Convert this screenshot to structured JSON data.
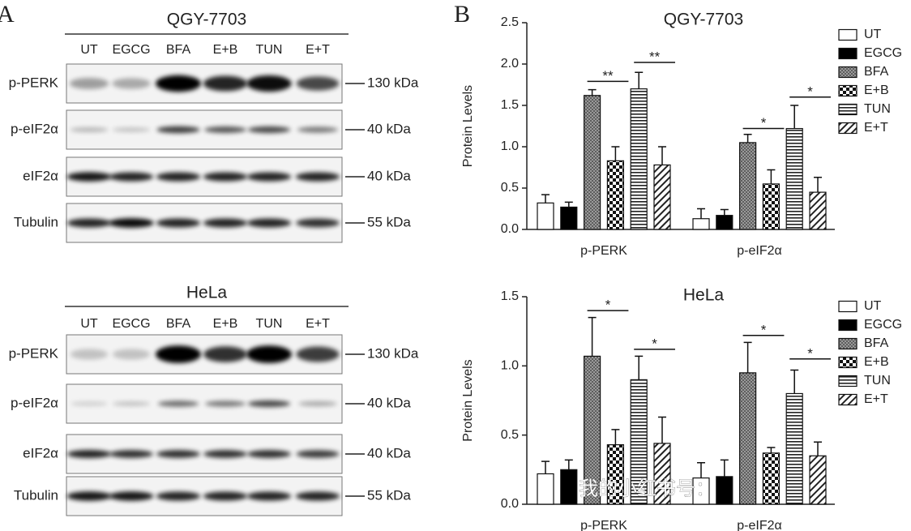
{
  "panels": {
    "a": "A",
    "b": "B"
  },
  "blots": [
    {
      "title": "QGY-7703",
      "lanes": [
        "UT",
        "EGCG",
        "BFA",
        "E+B",
        "TUN",
        "E+T"
      ],
      "rows": [
        {
          "label": "p-PERK",
          "marker": "130 kDa"
        },
        {
          "label": "p-eIF2α",
          "marker": "40 kDa"
        },
        {
          "label": "eIF2α",
          "marker": "40 kDa"
        },
        {
          "label": "Tubulin",
          "marker": "55 kDa"
        }
      ]
    },
    {
      "title": "HeLa",
      "lanes": [
        "UT",
        "EGCG",
        "BFA",
        "E+B",
        "TUN",
        "E+T"
      ],
      "rows": [
        {
          "label": "p-PERK",
          "marker": "130 kDa"
        },
        {
          "label": "p-eIF2α",
          "marker": "40 kDa"
        },
        {
          "label": "eIF2α",
          "marker": "40 kDa"
        },
        {
          "label": "Tubulin",
          "marker": "55 kDa"
        }
      ]
    }
  ],
  "chart_data": [
    {
      "type": "bar",
      "title": "QGY-7703",
      "ylabel": "Protein Levels",
      "categories": [
        "p-PERK",
        "p-eIF2α"
      ],
      "series": [
        {
          "name": "UT",
          "color": "#ffffff",
          "pattern": "solid",
          "values": [
            0.32,
            0.13
          ],
          "errors": [
            0.1,
            0.12
          ]
        },
        {
          "name": "EGCG",
          "color": "#000000",
          "pattern": "solid",
          "values": [
            0.27,
            0.17
          ],
          "errors": [
            0.06,
            0.07
          ]
        },
        {
          "name": "BFA",
          "color": "#888888",
          "pattern": "dots",
          "values": [
            1.62,
            1.05
          ],
          "errors": [
            0.07,
            0.1
          ]
        },
        {
          "name": "E+B",
          "color": "#000000",
          "pattern": "checker",
          "values": [
            0.83,
            0.55
          ],
          "errors": [
            0.17,
            0.17
          ]
        },
        {
          "name": "TUN",
          "color": "#000000",
          "pattern": "hlines",
          "values": [
            1.7,
            1.22
          ],
          "errors": [
            0.2,
            0.28
          ]
        },
        {
          "name": "E+T",
          "color": "#000000",
          "pattern": "diagonal",
          "values": [
            0.78,
            0.45
          ],
          "errors": [
            0.22,
            0.18
          ]
        }
      ],
      "ylim": [
        0,
        2.5
      ],
      "yticks": [
        {
          "value": 0,
          "label": "0.0"
        },
        {
          "value": 0.5,
          "label": "0.5"
        },
        {
          "value": 1,
          "label": "1.0"
        },
        {
          "value": 1.5,
          "label": "1.5"
        },
        {
          "value": 2,
          "label": "2.0"
        },
        {
          "value": 2.5,
          "label": "2.5"
        }
      ],
      "legend": "right",
      "annotations": [
        "**",
        "**",
        "*",
        "*"
      ]
    },
    {
      "type": "bar",
      "title": "HeLa",
      "ylabel": "Protein Levels",
      "categories": [
        "p-PERK",
        "p-eIF2α"
      ],
      "series": [
        {
          "name": "UT",
          "color": "#ffffff",
          "pattern": "solid",
          "values": [
            0.22,
            0.19
          ],
          "errors": [
            0.09,
            0.11
          ]
        },
        {
          "name": "EGCG",
          "color": "#000000",
          "pattern": "solid",
          "values": [
            0.25,
            0.2
          ],
          "errors": [
            0.07,
            0.12
          ]
        },
        {
          "name": "BFA",
          "color": "#888888",
          "pattern": "dots",
          "values": [
            1.07,
            0.95
          ],
          "errors": [
            0.28,
            0.22
          ]
        },
        {
          "name": "E+B",
          "color": "#000000",
          "pattern": "checker",
          "values": [
            0.43,
            0.37
          ],
          "errors": [
            0.11,
            0.04
          ]
        },
        {
          "name": "TUN",
          "color": "#000000",
          "pattern": "hlines",
          "values": [
            0.9,
            0.8
          ],
          "errors": [
            0.17,
            0.17
          ]
        },
        {
          "name": "E+T",
          "color": "#000000",
          "pattern": "diagonal",
          "values": [
            0.44,
            0.35
          ],
          "errors": [
            0.19,
            0.1
          ]
        }
      ],
      "ylim": [
        0,
        1.5
      ],
      "yticks": [
        {
          "value": 0,
          "label": "0.0"
        },
        {
          "value": 0.5,
          "label": "0.5"
        },
        {
          "value": 1,
          "label": "1.0"
        },
        {
          "value": 1.5,
          "label": "1.5"
        }
      ],
      "legend": "right",
      "annotations": [
        "*",
        "*",
        "*",
        "*"
      ]
    }
  ],
  "watermark": "我的小红书号："
}
